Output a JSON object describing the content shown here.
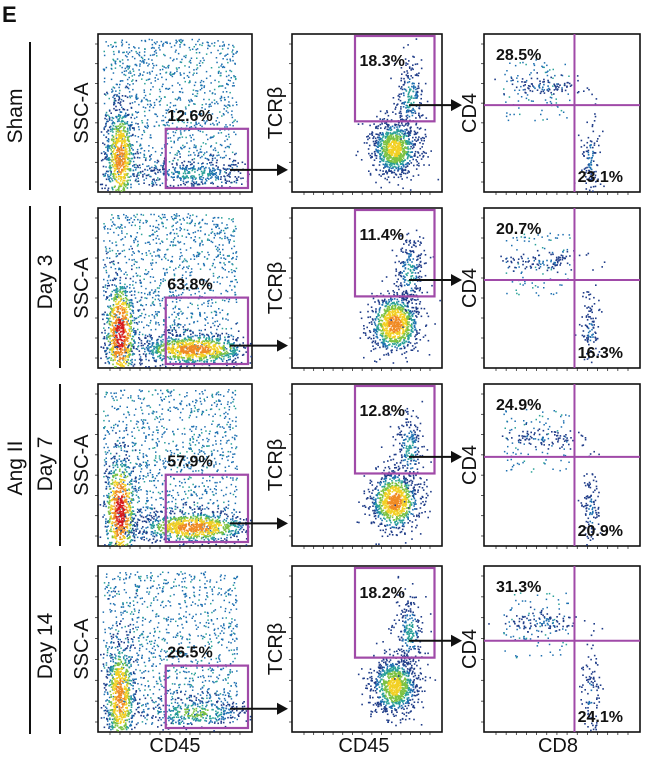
{
  "panel_letter": "E",
  "axis_labels": {
    "ssc": "SSC-A",
    "tcr": "TCRβ",
    "cd4": "CD4",
    "col1_x": "CD45",
    "col2_x": "CD45",
    "col3_x": "CD8"
  },
  "group_labels": {
    "sham": "Sham",
    "angii": "Ang II"
  },
  "rows": [
    {
      "label": "Sham",
      "cd45_gate": "12.6%",
      "tcr_gate": "18.3%",
      "cd4_gate": "28.5%",
      "cd8_gate": "23.1%"
    },
    {
      "label": "Day 3",
      "cd45_gate": "63.8%",
      "tcr_gate": "11.4%",
      "cd4_gate": "20.7%",
      "cd8_gate": "16.3%"
    },
    {
      "label": "Day 7",
      "cd45_gate": "57.9%",
      "tcr_gate": "12.8%",
      "cd4_gate": "24.9%",
      "cd8_gate": "20.9%"
    },
    {
      "label": "Day 14",
      "cd45_gate": "26.5%",
      "tcr_gate": "18.2%",
      "cd4_gate": "31.3%",
      "cd8_gate": "24.1%"
    }
  ],
  "colors": {
    "gate": "#a04aa8",
    "density": [
      "#1f3c88",
      "#1d6fb0",
      "#2aa198",
      "#7cc242",
      "#f2d024",
      "#f08a24",
      "#d7191c"
    ]
  }
}
